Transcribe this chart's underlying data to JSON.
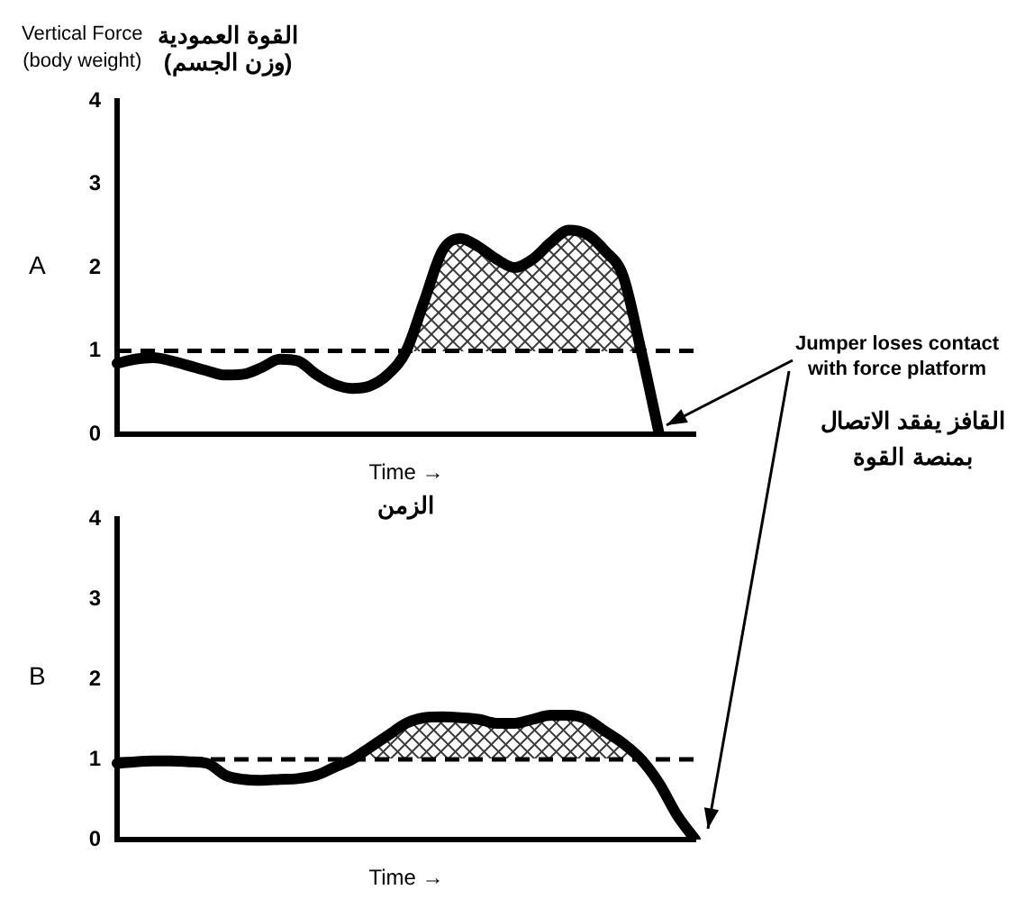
{
  "chart_data": [
    {
      "type": "line",
      "title": "A",
      "ylabel": "Vertical Force\n(body weight)\nالقوة العمودية\n(وزن الجسم)",
      "xlabel": "Time →\nالزمن",
      "categories": [
        null,
        null,
        null,
        null,
        null,
        null,
        null,
        null,
        null,
        null,
        null,
        null,
        null,
        null,
        null,
        null,
        null,
        null,
        null,
        null,
        null,
        null,
        null,
        null,
        null,
        null,
        null,
        null,
        null,
        null,
        null,
        null,
        null
      ],
      "series": [
        {
          "color": "#000000",
          "values": [
            0.85,
            0.9,
            0.92,
            0.88,
            0.82,
            0.76,
            0.71,
            0.72,
            0.8,
            0.9,
            0.88,
            0.72,
            0.6,
            0.55,
            0.58,
            0.72,
            1.0,
            1.6,
            2.2,
            2.35,
            2.25,
            2.1,
            2.0,
            2.1,
            2.3,
            2.45,
            2.4,
            2.2,
            1.9,
            1.0,
            0.0,
            null,
            null
          ]
        }
      ],
      "ylim": [
        0,
        4
      ],
      "yticks": [
        0,
        1,
        2,
        3,
        4
      ],
      "ref_lines": [
        {
          "axis": "y",
          "value": 1,
          "line_style": "dashed",
          "color": "#000000"
        }
      ],
      "annotations": [
        "Jumper loses contact with force platform",
        "القافز يفقد الاتصال بمنصة القوة"
      ]
    },
    {
      "type": "line",
      "title": "B",
      "xlabel": "Time →",
      "categories": [
        null,
        null,
        null,
        null,
        null,
        null,
        null,
        null,
        null,
        null,
        null,
        null,
        null,
        null,
        null,
        null,
        null,
        null,
        null,
        null,
        null,
        null,
        null,
        null,
        null,
        null,
        null,
        null,
        null,
        null,
        null,
        null,
        null
      ],
      "series": [
        {
          "color": "#000000",
          "values": [
            0.95,
            0.97,
            0.98,
            0.98,
            0.97,
            0.95,
            0.8,
            0.75,
            0.74,
            0.75,
            0.76,
            0.8,
            0.9,
            1.0,
            1.15,
            1.3,
            1.45,
            1.52,
            1.53,
            1.52,
            1.5,
            1.45,
            1.45,
            1.5,
            1.55,
            1.55,
            1.5,
            1.35,
            1.2,
            1.0,
            0.7,
            0.3,
            0.0
          ]
        }
      ],
      "ylim": [
        0,
        4
      ],
      "yticks": [
        0,
        1,
        2,
        3,
        4
      ],
      "ref_lines": [
        {
          "axis": "y",
          "value": 1,
          "line_style": "dashed",
          "color": "#000000"
        }
      ]
    }
  ]
}
